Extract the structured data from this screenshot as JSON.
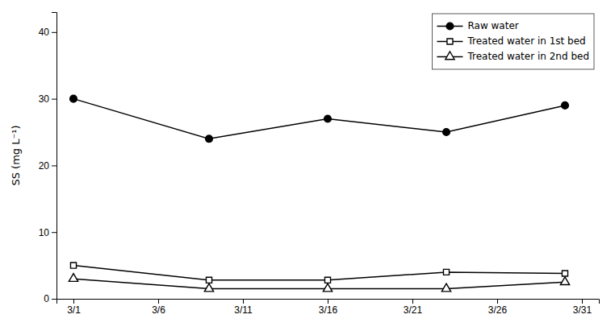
{
  "chart_data": {
    "type": "line",
    "y_label": "SS (mg L⁻¹)",
    "x": [
      1,
      9,
      16,
      23,
      30
    ],
    "series": [
      {
        "name": "Raw water",
        "color": "#000000",
        "marker": "circle",
        "values": [
          30.0,
          24.0,
          27.0,
          25.0,
          29.0
        ]
      },
      {
        "name": "Treated water in 1st bed",
        "color": "#000000",
        "marker": "square-open",
        "values": [
          5.0,
          2.8,
          2.8,
          4.0,
          3.8
        ]
      },
      {
        "name": "Treated water in 2nd bed",
        "color": "#000000",
        "marker": "triangle-open",
        "values": [
          3.0,
          1.5,
          1.5,
          1.5,
          2.5
        ]
      }
    ],
    "xlim": [
      0,
      32
    ],
    "xticks": [
      {
        "value": 1,
        "label": "3/1"
      },
      {
        "value": 6,
        "label": "3/6"
      },
      {
        "value": 11,
        "label": "3/11"
      },
      {
        "value": 16,
        "label": "3/16"
      },
      {
        "value": 21,
        "label": "3/21"
      },
      {
        "value": 26,
        "label": "3/26"
      },
      {
        "value": 31,
        "label": "3/31"
      }
    ],
    "ylim": [
      0,
      43
    ],
    "yticks": [
      0,
      10,
      20,
      30,
      40
    ],
    "grid": false,
    "legend": "upper-right"
  }
}
